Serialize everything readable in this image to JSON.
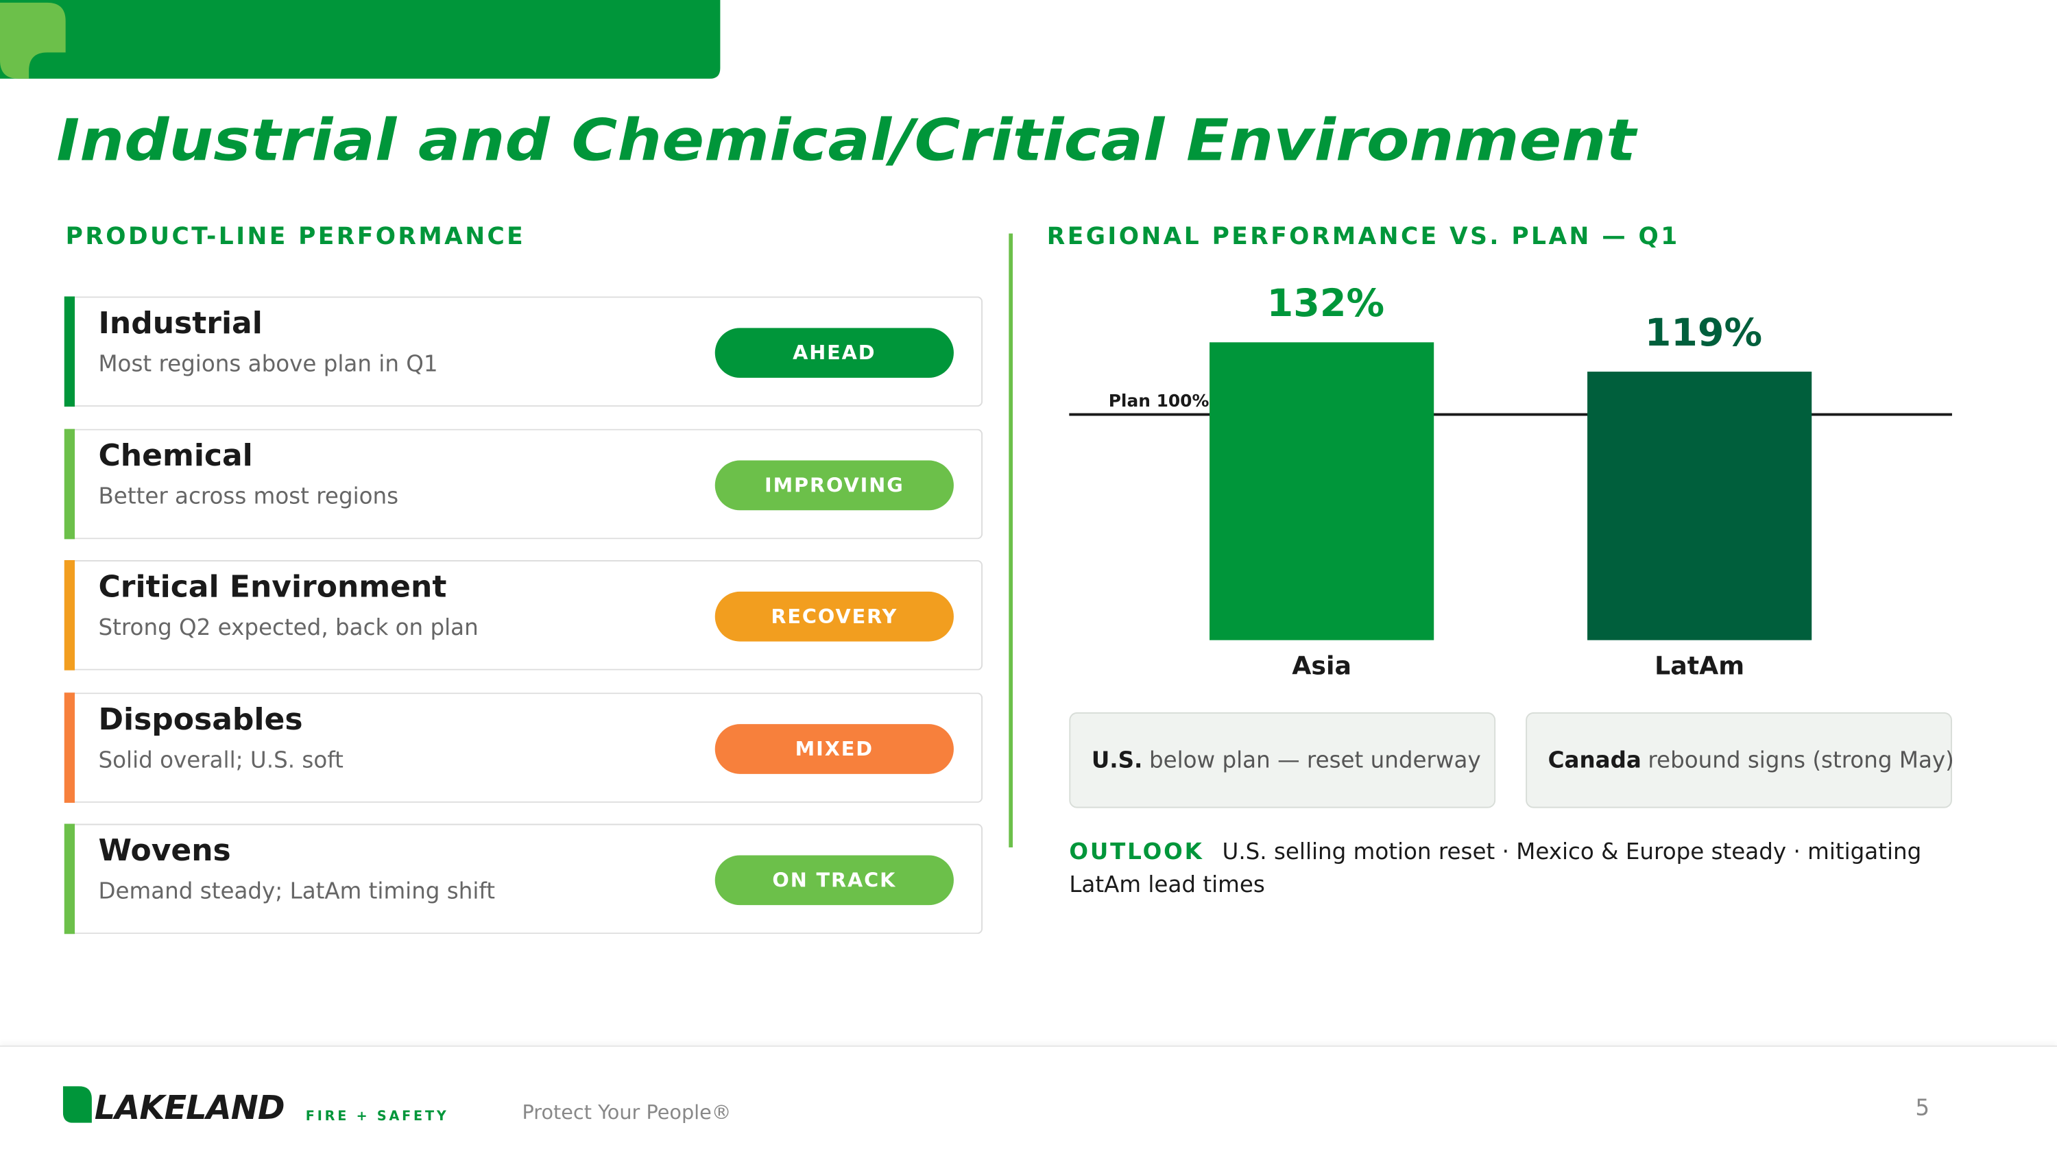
{
  "header": {
    "title": "Industrial and Chemical/Critical Environment"
  },
  "product_lines": {
    "heading": "PRODUCT-LINE PERFORMANCE",
    "items": [
      {
        "name": "Industrial",
        "description": "Most regions above plan in Q1",
        "status": "AHEAD",
        "color": "#00963a"
      },
      {
        "name": "Chemical",
        "description": "Better across most regions",
        "status": "IMPROVING",
        "color": "#6cc04a"
      },
      {
        "name": "Critical Environment",
        "description": "Strong Q2 expected, back on plan",
        "status": "RECOVERY",
        "color": "#f29e1f"
      },
      {
        "name": "Disposables",
        "description": "Solid overall; U.S. soft",
        "status": "MIXED",
        "color": "#f7803c"
      },
      {
        "name": "Wovens",
        "description": "Demand steady; LatAm timing shift",
        "status": "ON TRACK",
        "color": "#6cc04a"
      }
    ]
  },
  "chart_data": {
    "type": "bar",
    "title": "REGIONAL PERFORMANCE VS. PLAN — Q1",
    "categories": [
      "Asia",
      "LatAm"
    ],
    "values": [
      132,
      119
    ],
    "value_labels": [
      "132%",
      "119%"
    ],
    "colors": [
      "#00963a",
      "#005f3c"
    ],
    "label_colors": [
      "#00963a",
      "#005f3c"
    ],
    "ylim": [
      0,
      150
    ],
    "reference_line": {
      "value": 100,
      "label": "Plan 100%"
    }
  },
  "notes": [
    {
      "bold": "U.S.",
      "text": "below plan — reset underway"
    },
    {
      "bold": "Canada",
      "text": "rebound signs (strong May)"
    }
  ],
  "outlook": {
    "label": "OUTLOOK",
    "text": "U.S. selling motion reset · Mexico & Europe steady · mitigating LatAm lead times"
  },
  "footer": {
    "logo": "LAKELAND",
    "logo_sub": "FIRE + SAFETY",
    "tagline": "Protect Your People®",
    "page": "5"
  }
}
